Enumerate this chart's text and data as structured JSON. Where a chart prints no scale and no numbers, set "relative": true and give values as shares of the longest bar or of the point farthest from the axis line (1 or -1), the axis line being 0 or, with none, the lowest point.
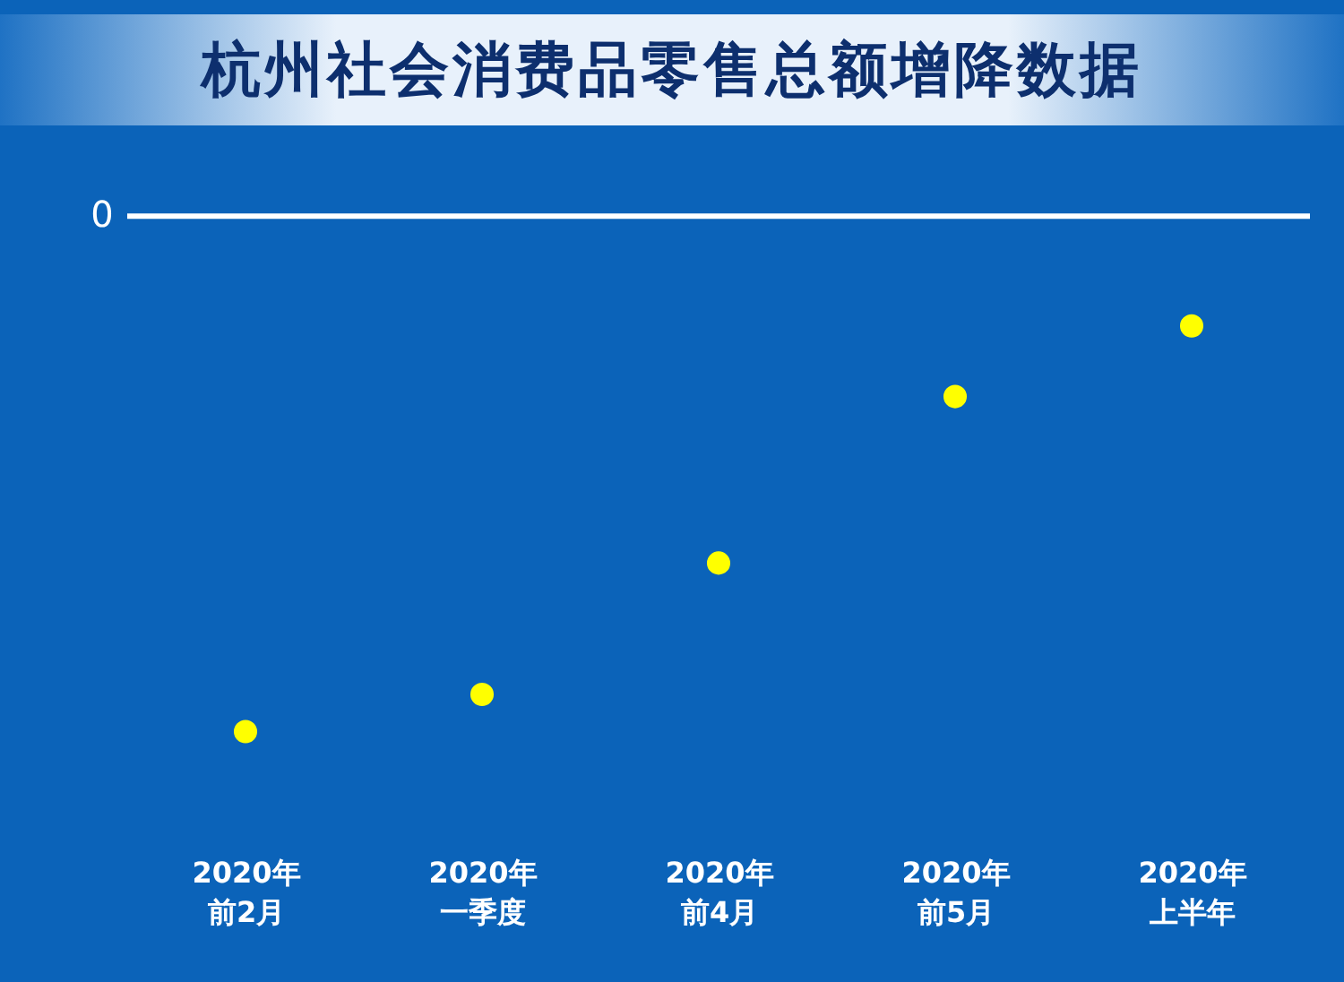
{
  "chart_data": {
    "type": "scatter",
    "title": "杭州社会消费品零售总额增降数据",
    "relative": true,
    "marker": "circle",
    "categories": [
      "2020年前2月",
      "2020年一季度",
      "2020年前4月",
      "2020年前5月",
      "2020年上半年"
    ],
    "series": [
      {
        "color": "#ffff00",
        "values": [
          -1,
          -0.928,
          -0.673,
          -0.35,
          -0.213
        ]
      }
    ],
    "ref_lines": [
      {
        "axis": "y",
        "value": 0,
        "label": "0",
        "color": "#ffffff"
      }
    ]
  }
}
